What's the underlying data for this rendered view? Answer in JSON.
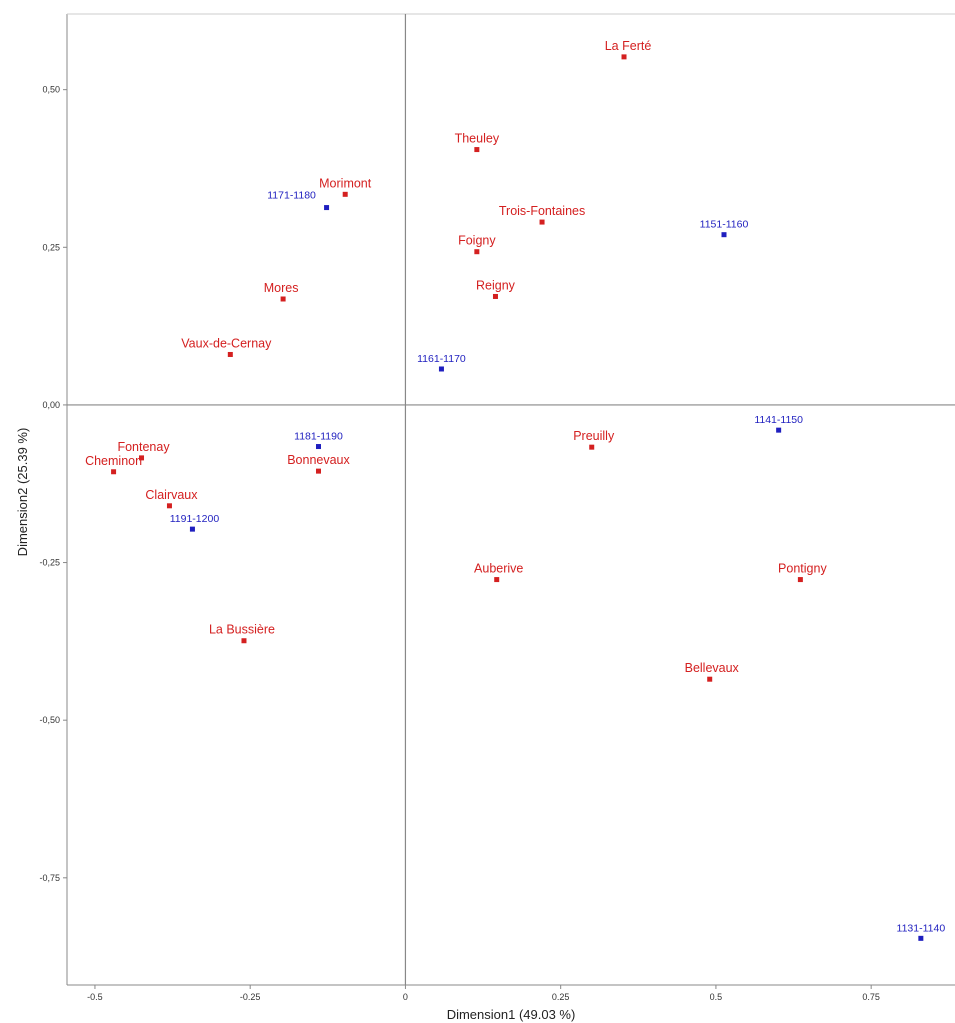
{
  "chart_data": {
    "type": "scatter",
    "xlabel": "Dimension1 (49.03 %)",
    "ylabel": "Dimension2 (25.39 %)",
    "xlim": [
      -0.545,
      0.885
    ],
    "ylim": [
      -0.92,
      0.62
    ],
    "x_ticks": [
      {
        "value": -0.5,
        "label": "-0.5"
      },
      {
        "value": -0.25,
        "label": "-0.25"
      },
      {
        "value": 0,
        "label": "0"
      },
      {
        "value": 0.25,
        "label": "0.25"
      },
      {
        "value": 0.5,
        "label": "0.5"
      },
      {
        "value": 0.75,
        "label": "0.75"
      }
    ],
    "y_ticks": [
      {
        "value": 0.5,
        "label": "0,50"
      },
      {
        "value": 0.25,
        "label": "0,25"
      },
      {
        "value": 0,
        "label": "0,00"
      },
      {
        "value": -0.25,
        "label": "-0,25"
      },
      {
        "value": -0.5,
        "label": "-0,50"
      },
      {
        "value": -0.75,
        "label": "-0,75"
      }
    ],
    "grid": false,
    "reference_lines": {
      "x": 0,
      "y": 0
    },
    "colors": {
      "abbeys": "#d42020",
      "decades": "#1f1fbf",
      "axes": "#888888"
    },
    "series": [
      {
        "points": [
          {
            "label": "La Ferté",
            "x": 0.352,
            "y": 0.552
          },
          {
            "label": "Theuley",
            "x": 0.115,
            "y": 0.405
          },
          {
            "label": "Morimont",
            "x": -0.097,
            "y": 0.334
          },
          {
            "label": "Trois-Fontaines",
            "x": 0.22,
            "y": 0.29
          },
          {
            "label": "Foigny",
            "x": 0.115,
            "y": 0.243
          },
          {
            "label": "Reigny",
            "x": 0.145,
            "y": 0.172
          },
          {
            "label": "Mores",
            "x": -0.197,
            "y": 0.168
          },
          {
            "label": "Vaux-de-Cernay",
            "x": -0.282,
            "y": 0.08
          },
          {
            "label": "Fontenay",
            "x": -0.425,
            "y": -0.084
          },
          {
            "label": "Cheminon",
            "x": -0.47,
            "y": -0.106
          },
          {
            "label": "Clairvaux",
            "x": -0.38,
            "y": -0.16
          },
          {
            "label": "Bonnevaux",
            "x": -0.14,
            "y": -0.105
          },
          {
            "label": "La Bussière",
            "x": -0.26,
            "y": -0.374
          },
          {
            "label": "Preuilly",
            "x": 0.3,
            "y": -0.067
          },
          {
            "label": "Auberive",
            "x": 0.147,
            "y": -0.277
          },
          {
            "label": "Pontigny",
            "x": 0.636,
            "y": -0.277
          },
          {
            "label": "Bellevaux",
            "x": 0.49,
            "y": -0.435
          }
        ]
      },
      {
        "points": [
          {
            "label": "1171-1180",
            "x": -0.127,
            "y": 0.313
          },
          {
            "label": "1151-1160",
            "x": 0.513,
            "y": 0.27
          },
          {
            "label": "1161-1170",
            "x": 0.058,
            "y": 0.057
          },
          {
            "label": "1181-1190",
            "x": -0.14,
            "y": -0.066
          },
          {
            "label": "1141-1150",
            "x": 0.601,
            "y": -0.04
          },
          {
            "label": "1191-1200",
            "x": -0.343,
            "y": -0.197
          },
          {
            "label": "1131-1140",
            "x": 0.83,
            "y": -0.846
          }
        ]
      }
    ]
  }
}
